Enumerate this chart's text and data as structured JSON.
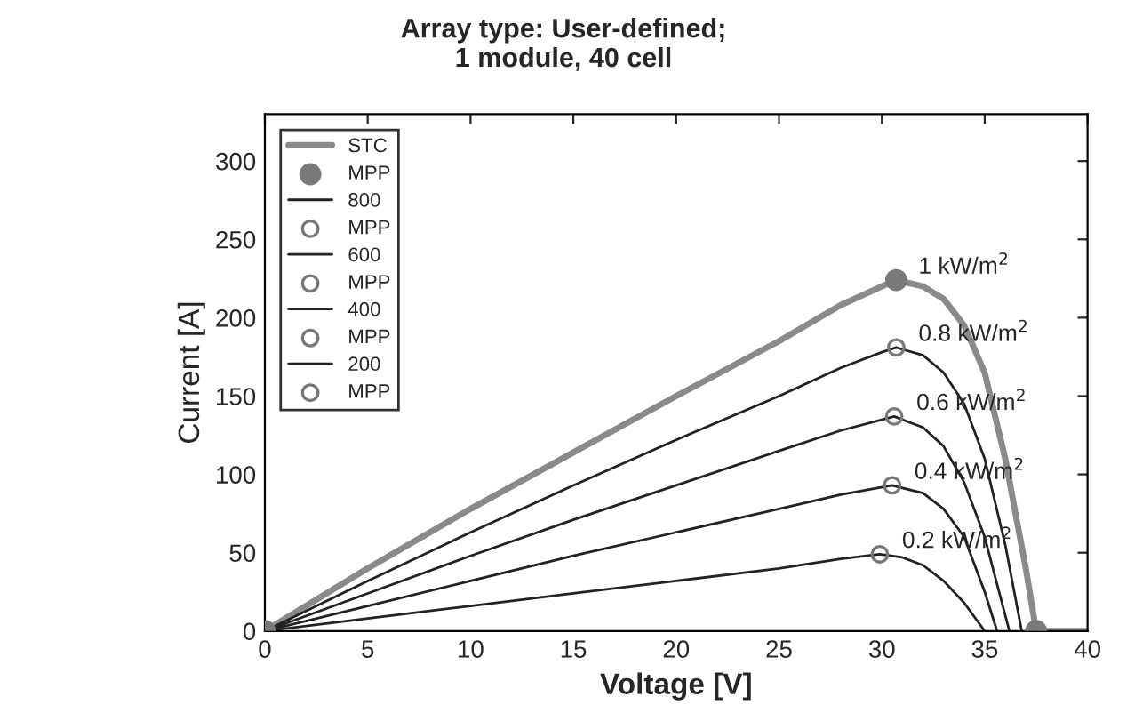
{
  "chart_data": {
    "type": "line",
    "title": "Array type: User-defined;\n1 module, 40 cell",
    "xlabel": "Voltage [V]",
    "ylabel": "Current [A]",
    "xlim": [
      0,
      40
    ],
    "ylim": [
      0,
      330
    ],
    "xticks": [
      0,
      5,
      10,
      15,
      20,
      25,
      30,
      35,
      40
    ],
    "yticks": [
      0,
      50,
      100,
      150,
      200,
      250,
      300
    ],
    "grid": false,
    "legend": "top left",
    "series": [
      {
        "name": "STC",
        "color": "#8a8a8a",
        "x": [
          0,
          5,
          10,
          15,
          20,
          25,
          28,
          30,
          30.7,
          32,
          33,
          34,
          35,
          36,
          37,
          37.5,
          40
        ],
        "values": [
          0,
          40,
          78,
          114,
          150,
          185,
          208,
          220,
          224,
          220,
          212,
          195,
          165,
          110,
          40,
          0,
          0
        ]
      },
      {
        "name": "MPP",
        "type": "scatter",
        "marker": "circle",
        "color": "#7a7a7a",
        "x": [
          0,
          30.7,
          37.5
        ],
        "values": [
          0,
          224,
          0
        ]
      },
      {
        "name": "800",
        "color": "#222222",
        "x": [
          0,
          5,
          10,
          15,
          20,
          25,
          28,
          30,
          30.7,
          32,
          33,
          34,
          35,
          36,
          36.8
        ],
        "values": [
          0,
          32,
          63,
          93,
          122,
          150,
          168,
          178,
          181,
          176,
          165,
          145,
          110,
          55,
          0
        ]
      },
      {
        "name": "MPP",
        "type": "scatter",
        "marker": "circle",
        "color": "#777777",
        "x": [
          30.7
        ],
        "values": [
          181
        ]
      },
      {
        "name": "600",
        "color": "#222222",
        "x": [
          0,
          5,
          10,
          15,
          20,
          25,
          28,
          30.6,
          32,
          33,
          34,
          35,
          36.2
        ],
        "values": [
          0,
          24,
          48,
          71,
          93,
          115,
          128,
          137,
          130,
          118,
          95,
          60,
          0
        ]
      },
      {
        "name": "MPP",
        "type": "scatter",
        "marker": "circle",
        "color": "#777777",
        "x": [
          30.6
        ],
        "values": [
          137
        ]
      },
      {
        "name": "400",
        "color": "#222222",
        "x": [
          0,
          5,
          10,
          15,
          20,
          25,
          28,
          30.5,
          32,
          33,
          34,
          35,
          35.6
        ],
        "values": [
          0,
          16,
          32,
          48,
          63,
          78,
          87,
          93,
          88,
          78,
          60,
          25,
          0
        ]
      },
      {
        "name": "MPP",
        "type": "scatter",
        "marker": "circle",
        "color": "#777777",
        "x": [
          30.5
        ],
        "values": [
          93
        ]
      },
      {
        "name": "200",
        "color": "#222222",
        "x": [
          0,
          5,
          10,
          15,
          20,
          25,
          28,
          29.9,
          31,
          32,
          33,
          34,
          35
        ],
        "values": [
          0,
          8,
          16,
          24,
          32,
          40,
          46,
          49,
          47,
          42,
          32,
          18,
          0
        ]
      },
      {
        "name": "MPP",
        "type": "scatter",
        "marker": "circle",
        "color": "#777777",
        "x": [
          29.9
        ],
        "values": [
          49
        ]
      }
    ],
    "annotations": [
      {
        "text": "1 kW/m$^{2}$",
        "x": 30.7,
        "y": 224
      },
      {
        "text": "0.8 kW/m$^{2}$",
        "x": 30.7,
        "y": 181
      },
      {
        "text": "0.6 kW/m$^{2}$",
        "x": 30.6,
        "y": 137
      },
      {
        "text": "0.4 kW/m$^{2}$",
        "x": 30.5,
        "y": 93
      },
      {
        "text": "0.2 kW/m$^{2}$",
        "x": 29.9,
        "y": 49
      }
    ]
  }
}
